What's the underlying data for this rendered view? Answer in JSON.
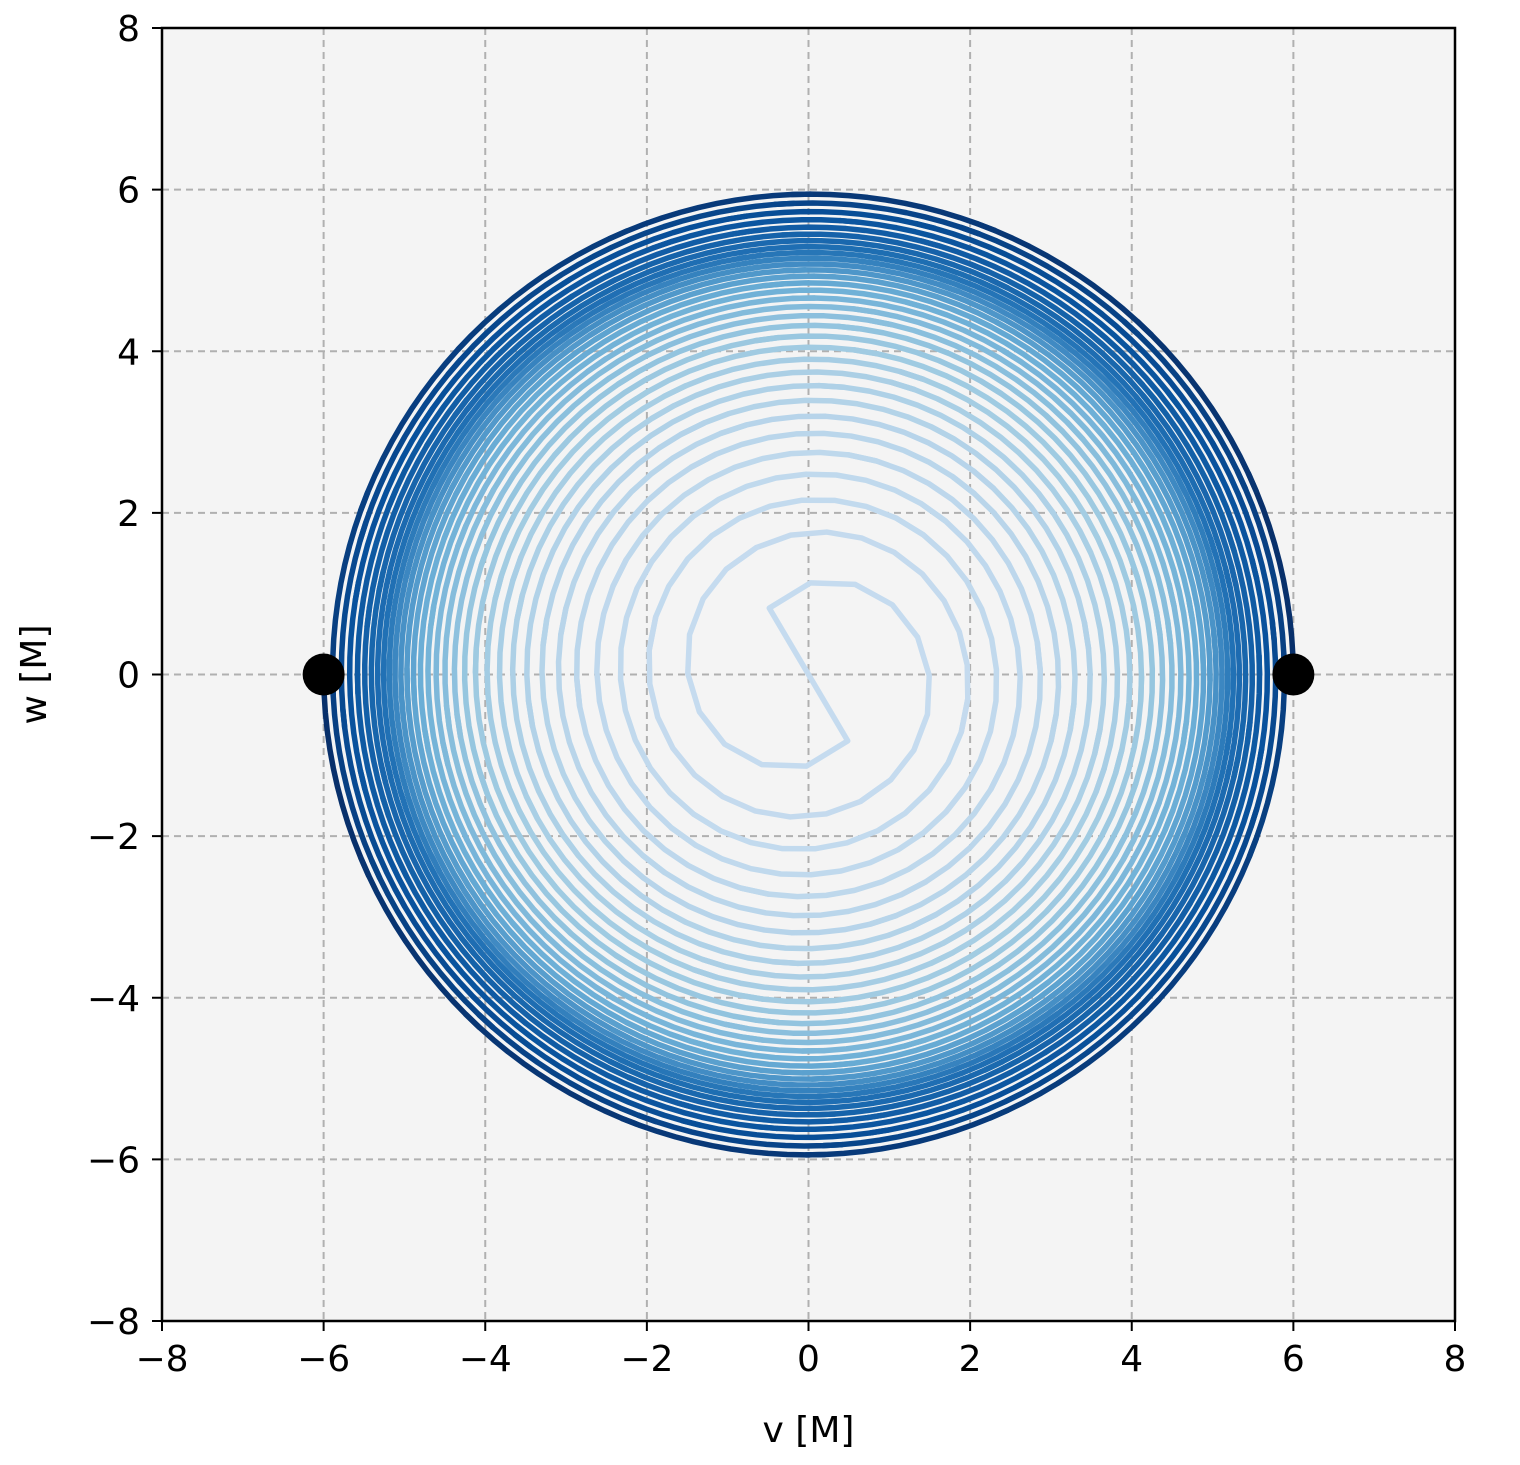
{
  "chart_data": {
    "type": "line",
    "title": "",
    "xlabel": "v [M]",
    "ylabel": "w [M]",
    "xlim": [
      -8,
      8
    ],
    "ylim": [
      -8,
      8
    ],
    "xticks": [
      -8,
      -6,
      -4,
      -2,
      0,
      2,
      4,
      6,
      8
    ],
    "yticks": [
      -8,
      -6,
      -4,
      -2,
      0,
      2,
      4,
      6,
      8
    ],
    "xtick_labels": [
      "−8",
      "−6",
      "−4",
      "−2",
      "0",
      "2",
      "4",
      "6",
      "8"
    ],
    "ytick_labels": [
      "−8",
      "−6",
      "−4",
      "−2",
      "0",
      "2",
      "4",
      "6",
      "8"
    ],
    "grid": true,
    "legend": "none",
    "colormap": "Blues",
    "colors": {
      "background": "#f4f4f4",
      "grid": "#b0b0b0",
      "dark": "#08306b",
      "mid": "#2171b5",
      "light": "#c6dbef",
      "marker": "#000000"
    },
    "series": [
      {
        "description_of_path": "inspiral",
        "start": [
          6.0,
          0.0
        ],
        "end": [
          0.0,
          0.0
        ],
        "initial_radius": 6.0,
        "orbits": 16
      },
      {
        "description_of_path": "inspiral",
        "start": [
          -6.0,
          0.0
        ],
        "end": [
          0.0,
          0.0
        ],
        "initial_radius": 6.0,
        "orbits": 16
      }
    ],
    "markers": [
      {
        "x": 6.0,
        "y": 0.0
      },
      {
        "x": -6.0,
        "y": 0.0
      }
    ]
  }
}
